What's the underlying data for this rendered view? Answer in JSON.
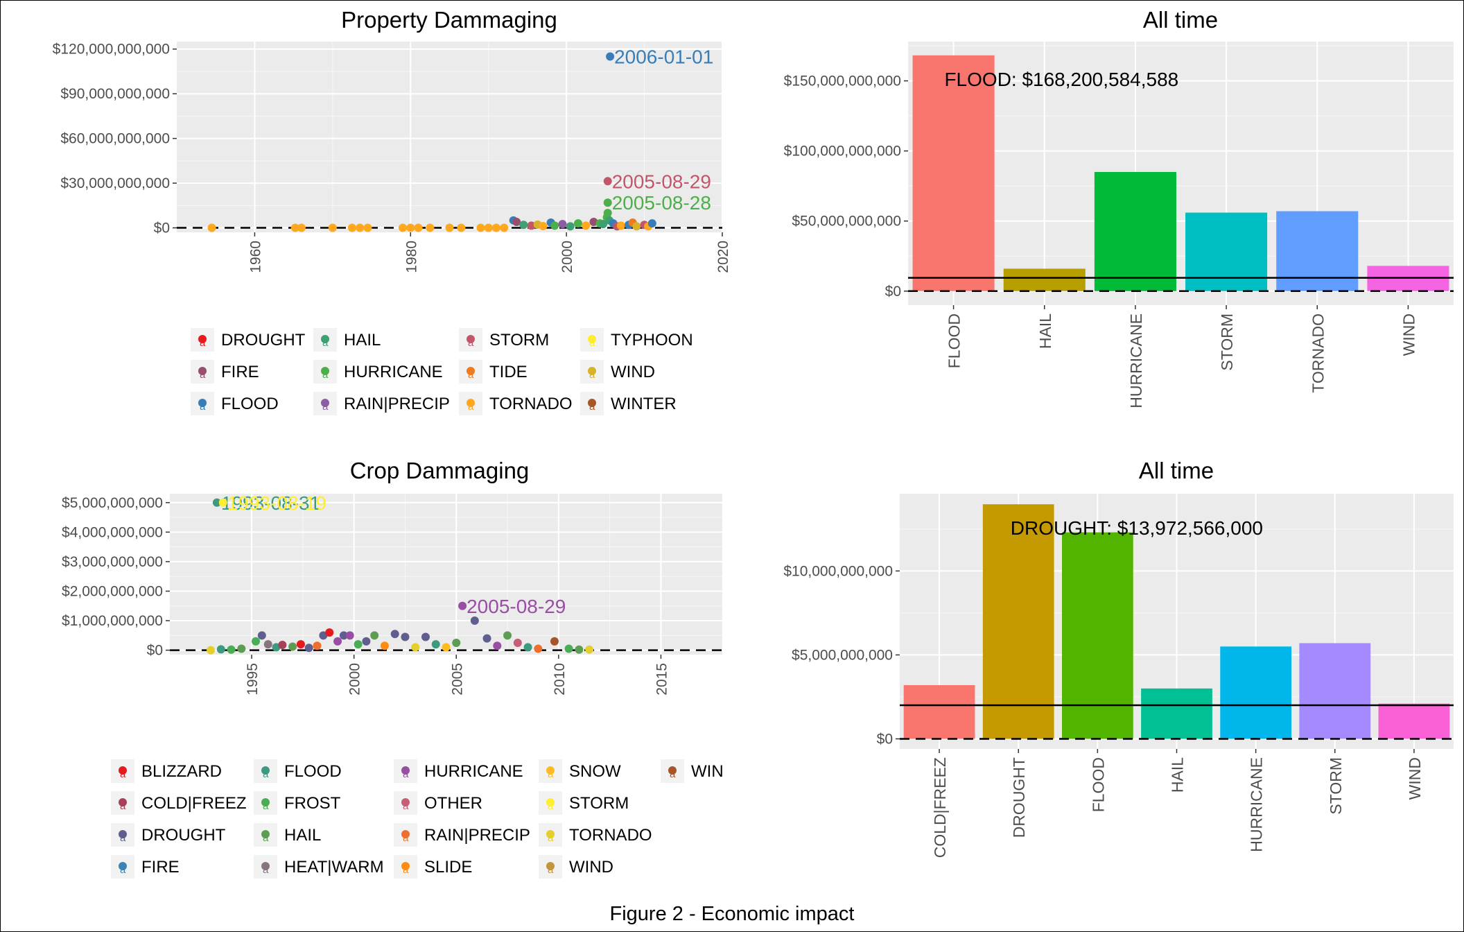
{
  "caption": "Figure 2 - Economic impact",
  "chart_data": [
    {
      "id": "property_scatter",
      "type": "scatter",
      "title": "Property Dammaging",
      "xlim": [
        1950,
        2020
      ],
      "ylim": [
        -3000000000,
        125000000000
      ],
      "x_ticks": [
        1960,
        1980,
        2000,
        2020
      ],
      "y_ticks": [
        0,
        30000000000,
        60000000000,
        90000000000,
        120000000000
      ],
      "y_tick_labels": [
        "$0",
        "$30,000,000,000",
        "$60,000,000,000",
        "$90,000,000,000",
        "$120,000,000,000"
      ],
      "grid": true,
      "baseline": 0,
      "legend_position": "bottom",
      "legend_columns": 4,
      "legend": [
        {
          "name": "DROUGHT",
          "color": "#e41a1c"
        },
        {
          "name": "FIRE",
          "color": "#984e6f"
        },
        {
          "name": "FLOOD",
          "color": "#377eb8"
        },
        {
          "name": "HAIL",
          "color": "#3d9f72"
        },
        {
          "name": "HURRICANE",
          "color": "#4daf4a"
        },
        {
          "name": "RAIN|PRECIP",
          "color": "#8a5ea0"
        },
        {
          "name": "STORM",
          "color": "#c2566b"
        },
        {
          "name": "TIDE",
          "color": "#f07a1e"
        },
        {
          "name": "TORNADO",
          "color": "#ffa81e"
        },
        {
          "name": "TYPHOON",
          "color": "#ffed2c"
        },
        {
          "name": "WIND",
          "color": "#d7b22a"
        },
        {
          "name": "WINTER",
          "color": "#a65628"
        }
      ],
      "points": [
        {
          "x": 1954.5,
          "y": 0,
          "cat": "TORNADO"
        },
        {
          "x": 1965.2,
          "y": 0,
          "cat": "TORNADO"
        },
        {
          "x": 1966.0,
          "y": 0,
          "cat": "TORNADO"
        },
        {
          "x": 1970.0,
          "y": 0,
          "cat": "TORNADO"
        },
        {
          "x": 1972.5,
          "y": 0,
          "cat": "TORNADO"
        },
        {
          "x": 1973.5,
          "y": 0,
          "cat": "TORNADO"
        },
        {
          "x": 1974.5,
          "y": 0,
          "cat": "TORNADO"
        },
        {
          "x": 1979.0,
          "y": 0,
          "cat": "TORNADO"
        },
        {
          "x": 1980.0,
          "y": 0,
          "cat": "TORNADO"
        },
        {
          "x": 1981.0,
          "y": 0,
          "cat": "TORNADO"
        },
        {
          "x": 1982.5,
          "y": 0,
          "cat": "TORNADO"
        },
        {
          "x": 1985.0,
          "y": 0,
          "cat": "TORNADO"
        },
        {
          "x": 1986.5,
          "y": 0,
          "cat": "TORNADO"
        },
        {
          "x": 1989.0,
          "y": 0,
          "cat": "TORNADO"
        },
        {
          "x": 1990.0,
          "y": 0,
          "cat": "TORNADO"
        },
        {
          "x": 1991.0,
          "y": 0,
          "cat": "TORNADO"
        },
        {
          "x": 1992.0,
          "y": 0,
          "cat": "TORNADO"
        },
        {
          "x": 1993.2,
          "y": 5000000000,
          "cat": "FLOOD"
        },
        {
          "x": 1993.6,
          "y": 4000000000,
          "cat": "FIRE"
        },
        {
          "x": 1994.5,
          "y": 2000000000,
          "cat": "HAIL"
        },
        {
          "x": 1995.5,
          "y": 1500000000,
          "cat": "STORM"
        },
        {
          "x": 1996.3,
          "y": 2200000000,
          "cat": "WIND"
        },
        {
          "x": 1997.0,
          "y": 1200000000,
          "cat": "TORNADO"
        },
        {
          "x": 1998.0,
          "y": 3500000000,
          "cat": "FLOOD"
        },
        {
          "x": 1998.5,
          "y": 1500000000,
          "cat": "HURRICANE"
        },
        {
          "x": 1999.5,
          "y": 2500000000,
          "cat": "RAIN|PRECIP"
        },
        {
          "x": 2000.5,
          "y": 1000000000,
          "cat": "HAIL"
        },
        {
          "x": 2001.5,
          "y": 3000000000,
          "cat": "HURRICANE"
        },
        {
          "x": 2002.5,
          "y": 1500000000,
          "cat": "TORNADO"
        },
        {
          "x": 2003.5,
          "y": 4000000000,
          "cat": "FIRE"
        },
        {
          "x": 2004.3,
          "y": 3000000000,
          "cat": "HURRICANE"
        },
        {
          "x": 2004.7,
          "y": 2500000000,
          "cat": "HAIL"
        },
        {
          "x": 2005.2,
          "y": 7000000000,
          "cat": "HURRICANE"
        },
        {
          "x": 2005.3,
          "y": 10000000000,
          "cat": "HURRICANE"
        },
        {
          "x": 2005.5,
          "y": 5000000000,
          "cat": "HAIL"
        },
        {
          "x": 2006.0,
          "y": 3000000000,
          "cat": "FLOOD"
        },
        {
          "x": 2006.5,
          "y": 1000000000,
          "cat": "STORM"
        },
        {
          "x": 2007.0,
          "y": 1500000000,
          "cat": "TORNADO"
        },
        {
          "x": 2008.0,
          "y": 2000000000,
          "cat": "FLOOD"
        },
        {
          "x": 2008.5,
          "y": 3500000000,
          "cat": "TIDE"
        },
        {
          "x": 2009.0,
          "y": 1000000000,
          "cat": "WIND"
        },
        {
          "x": 2010.0,
          "y": 2000000000,
          "cat": "STORM"
        },
        {
          "x": 2010.5,
          "y": 1000000000,
          "cat": "TORNADO"
        },
        {
          "x": 2011.0,
          "y": 3000000000,
          "cat": "FLOOD"
        },
        {
          "x": 2005.6,
          "y": 115000000000,
          "cat": "FLOOD",
          "label": "2006-01-01"
        },
        {
          "x": 2005.3,
          "y": 31300000000,
          "cat": "STORM",
          "label": "2005-08-29"
        },
        {
          "x": 2005.3,
          "y": 16900000000,
          "cat": "HURRICANE",
          "label": "2005-08-28"
        }
      ]
    },
    {
      "id": "property_bar",
      "type": "bar",
      "title": "All time",
      "categories": [
        "FLOOD",
        "HAIL",
        "HURRICANE",
        "STORM",
        "TORNADO",
        "WIND"
      ],
      "values": [
        168200584588,
        16000000000,
        85000000000,
        56000000000,
        57000000000,
        18000000000
      ],
      "colors": [
        "#f8766d",
        "#b79f00",
        "#00ba38",
        "#00bfc4",
        "#619cff",
        "#f564e3"
      ],
      "ylim": [
        -10000000000,
        178000000000
      ],
      "y_ticks": [
        0,
        50000000000,
        100000000000,
        150000000000
      ],
      "y_tick_labels": [
        "$0",
        "$50,000,000,000",
        "$100,000,000,000",
        "$150,000,000,000"
      ],
      "hline": 9500000000,
      "baseline": 0,
      "grid": true,
      "annotation": "FLOOD: $168,200,584,588"
    },
    {
      "id": "crop_scatter",
      "type": "scatter",
      "title": "Crop Dammaging",
      "xlim": [
        1991,
        2018
      ],
      "ylim": [
        -150000000,
        5300000000
      ],
      "x_ticks": [
        1995,
        2000,
        2005,
        2010,
        2015
      ],
      "y_ticks": [
        0,
        1000000000,
        2000000000,
        3000000000,
        4000000000,
        5000000000
      ],
      "y_tick_labels": [
        "$0",
        "$1,000,000,000",
        "$2,000,000,000",
        "$3,000,000,000",
        "$4,000,000,000",
        "$5,000,000,000"
      ],
      "grid": true,
      "baseline": 0,
      "legend_position": "bottom",
      "legend_columns": 5,
      "legend": [
        {
          "name": "BLIZZARD",
          "color": "#e41a1c"
        },
        {
          "name": "COLD|FREEZ",
          "color": "#a74158"
        },
        {
          "name": "DROUGHT",
          "color": "#5f5f8f"
        },
        {
          "name": "FIRE",
          "color": "#3b84b4"
        },
        {
          "name": "FLOOD",
          "color": "#3d9a80"
        },
        {
          "name": "FROST",
          "color": "#48ad55"
        },
        {
          "name": "HAIL",
          "color": "#5b9e52"
        },
        {
          "name": "HEAT|WARM",
          "color": "#867480"
        },
        {
          "name": "HURRICANE",
          "color": "#984ea3"
        },
        {
          "name": "OTHER",
          "color": "#c55e76"
        },
        {
          "name": "RAIN|PRECIP",
          "color": "#ee6f2d"
        },
        {
          "name": "SLIDE",
          "color": "#ff8c10"
        },
        {
          "name": "SNOW",
          "color": "#ffbb22"
        },
        {
          "name": "STORM",
          "color": "#ffee2f"
        },
        {
          "name": "TORNADO",
          "color": "#e5cf2f"
        },
        {
          "name": "WIND",
          "color": "#c2963b"
        },
        {
          "name": "WIN",
          "color": "#a65628"
        }
      ],
      "points": [
        {
          "x": 1993.3,
          "y": 5000000000,
          "cat": "FLOOD",
          "label": "1993-08-31"
        },
        {
          "x": 1993.6,
          "y": 5000000000,
          "cat": "STORM",
          "label": "1993-08-19"
        },
        {
          "x": 2005.3,
          "y": 1500000000,
          "cat": "HURRICANE",
          "label": "2005-08-29"
        },
        {
          "x": 2005.9,
          "y": 1000000000,
          "cat": "DROUGHT"
        },
        {
          "x": 1993.0,
          "y": 0,
          "cat": "TORNADO"
        },
        {
          "x": 1993.5,
          "y": 30000000,
          "cat": "FLOOD"
        },
        {
          "x": 1994.0,
          "y": 20000000,
          "cat": "FROST"
        },
        {
          "x": 1994.5,
          "y": 50000000,
          "cat": "HAIL"
        },
        {
          "x": 1995.2,
          "y": 300000000,
          "cat": "FROST"
        },
        {
          "x": 1995.5,
          "y": 500000000,
          "cat": "DROUGHT"
        },
        {
          "x": 1995.8,
          "y": 200000000,
          "cat": "HEAT|WARM"
        },
        {
          "x": 1996.2,
          "y": 100000000,
          "cat": "FLOOD"
        },
        {
          "x": 1996.5,
          "y": 180000000,
          "cat": "COLD|FREEZ"
        },
        {
          "x": 1997.0,
          "y": 120000000,
          "cat": "HAIL"
        },
        {
          "x": 1997.4,
          "y": 200000000,
          "cat": "BLIZZARD"
        },
        {
          "x": 1997.8,
          "y": 80000000,
          "cat": "DROUGHT"
        },
        {
          "x": 1998.2,
          "y": 150000000,
          "cat": "RAIN|PRECIP"
        },
        {
          "x": 1998.5,
          "y": 500000000,
          "cat": "DROUGHT"
        },
        {
          "x": 1998.8,
          "y": 600000000,
          "cat": "BLIZZARD"
        },
        {
          "x": 1999.2,
          "y": 300000000,
          "cat": "HURRICANE"
        },
        {
          "x": 1999.5,
          "y": 500000000,
          "cat": "DROUGHT"
        },
        {
          "x": 1999.8,
          "y": 500000000,
          "cat": "HURRICANE"
        },
        {
          "x": 2000.2,
          "y": 200000000,
          "cat": "FROST"
        },
        {
          "x": 2000.6,
          "y": 300000000,
          "cat": "DROUGHT"
        },
        {
          "x": 2001.0,
          "y": 500000000,
          "cat": "HAIL"
        },
        {
          "x": 2001.5,
          "y": 150000000,
          "cat": "SLIDE"
        },
        {
          "x": 2002.0,
          "y": 550000000,
          "cat": "DROUGHT"
        },
        {
          "x": 2002.5,
          "y": 450000000,
          "cat": "DROUGHT"
        },
        {
          "x": 2003.0,
          "y": 100000000,
          "cat": "TORNADO"
        },
        {
          "x": 2003.5,
          "y": 450000000,
          "cat": "DROUGHT"
        },
        {
          "x": 2004.0,
          "y": 200000000,
          "cat": "FLOOD"
        },
        {
          "x": 2004.5,
          "y": 100000000,
          "cat": "SNOW"
        },
        {
          "x": 2005.0,
          "y": 250000000,
          "cat": "HAIL"
        },
        {
          "x": 2006.5,
          "y": 400000000,
          "cat": "DROUGHT"
        },
        {
          "x": 2007.0,
          "y": 150000000,
          "cat": "HURRICANE"
        },
        {
          "x": 2007.5,
          "y": 500000000,
          "cat": "HAIL"
        },
        {
          "x": 2008.0,
          "y": 250000000,
          "cat": "OTHER"
        },
        {
          "x": 2008.5,
          "y": 100000000,
          "cat": "FLOOD"
        },
        {
          "x": 2009.0,
          "y": 50000000,
          "cat": "RAIN|PRECIP"
        },
        {
          "x": 2009.8,
          "y": 300000000,
          "cat": "WIN"
        },
        {
          "x": 2010.5,
          "y": 50000000,
          "cat": "FROST"
        },
        {
          "x": 2011.0,
          "y": 20000000,
          "cat": "HAIL"
        },
        {
          "x": 2011.5,
          "y": 20000000,
          "cat": "TORNADO"
        }
      ]
    },
    {
      "id": "crop_bar",
      "type": "bar",
      "title": "All time",
      "categories": [
        "COLD|FREEZ",
        "DROUGHT",
        "FLOOD",
        "HAIL",
        "HURRICANE",
        "STORM",
        "WIND"
      ],
      "values": [
        3200000000,
        13972566000,
        12300000000,
        3000000000,
        5500000000,
        5700000000,
        2100000000
      ],
      "colors": [
        "#f8766d",
        "#c49a00",
        "#53b400",
        "#00c094",
        "#00b6eb",
        "#a58aff",
        "#fb61d7"
      ],
      "ylim": [
        -600000000,
        14600000000
      ],
      "y_ticks": [
        0,
        5000000000,
        10000000000
      ],
      "y_tick_labels": [
        "$0",
        "$5,000,000,000",
        "$10,000,000,000"
      ],
      "hline": 2000000000,
      "baseline": 0,
      "grid": true,
      "annotation": "DROUGHT: $13,972,566,000"
    }
  ]
}
